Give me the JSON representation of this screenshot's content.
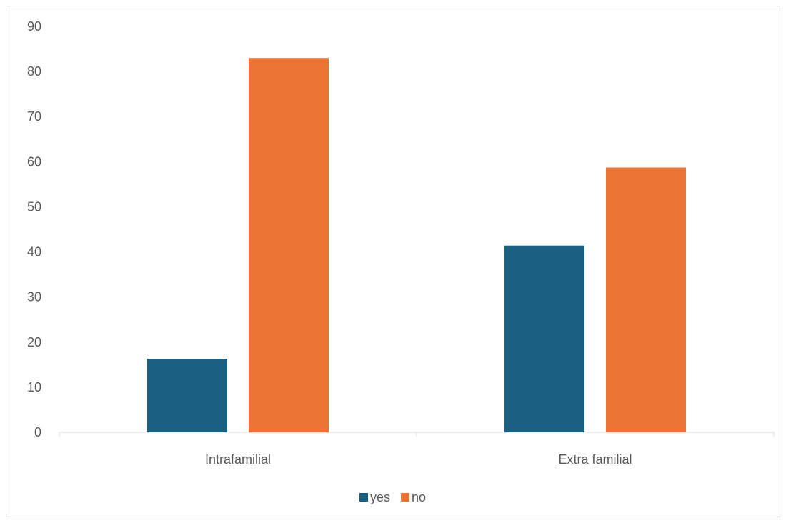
{
  "chart_data": {
    "type": "bar",
    "categories": [
      "Intrafamilial",
      "Extra familial"
    ],
    "series": [
      {
        "name": "yes",
        "values": [
          16.3,
          41.4
        ],
        "color": "#1a6082"
      },
      {
        "name": "no",
        "values": [
          83.0,
          58.7
        ],
        "color": "#eb7333"
      }
    ],
    "title": "",
    "xlabel": "",
    "ylabel": "",
    "ylim": [
      0,
      90
    ],
    "yticks": [
      0,
      10,
      20,
      30,
      40,
      50,
      60,
      70,
      80,
      90
    ],
    "grid": false,
    "legend_position": "bottom"
  }
}
